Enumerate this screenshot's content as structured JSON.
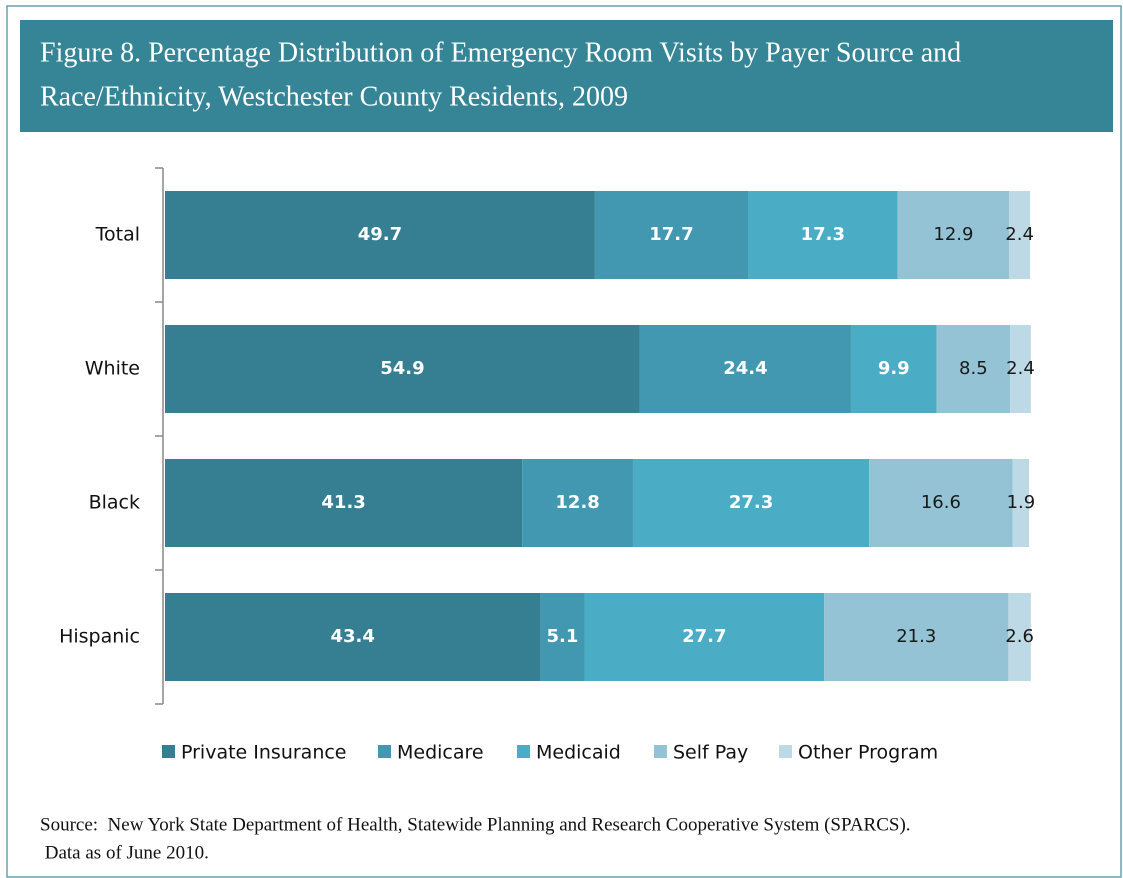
{
  "chart_data": {
    "type": "stacked-bar-horizontal",
    "title": [
      "Figure 8.  Percentage Distribution of Emergency Room Visits by Payer Source and",
      "Race/Ethnicity, Westchester County Residents, 2009"
    ],
    "categories": [
      "Total",
      "White",
      "Black",
      "Hispanic"
    ],
    "series": [
      {
        "name": "Private Insurance",
        "color": "#367f93",
        "label_color": "#ffffff",
        "values": [
          49.7,
          54.9,
          41.3,
          43.4
        ]
      },
      {
        "name": "Medicare",
        "color": "#4198b0",
        "label_color": "#ffffff",
        "values": [
          17.7,
          24.4,
          12.8,
          5.1
        ]
      },
      {
        "name": "Medicaid",
        "color": "#4bacc6",
        "label_color": "#ffffff",
        "values": [
          17.3,
          9.9,
          27.3,
          27.7
        ]
      },
      {
        "name": "Self Pay",
        "color": "#93c3d5",
        "label_color": "#1a1a1a",
        "values": [
          12.9,
          8.5,
          16.6,
          21.3
        ]
      },
      {
        "name": "Other Program",
        "color": "#bcd9e5",
        "label_color": "#1a1a1a",
        "values": [
          2.4,
          2.4,
          1.9,
          2.6
        ]
      }
    ],
    "xlim": [
      0,
      100
    ],
    "legend": "bottom",
    "notes": [
      "Source:  New York State Department of Health, Statewide Planning and Research Cooperative System (SPARCS).",
      " Data as of June 2010."
    ]
  }
}
